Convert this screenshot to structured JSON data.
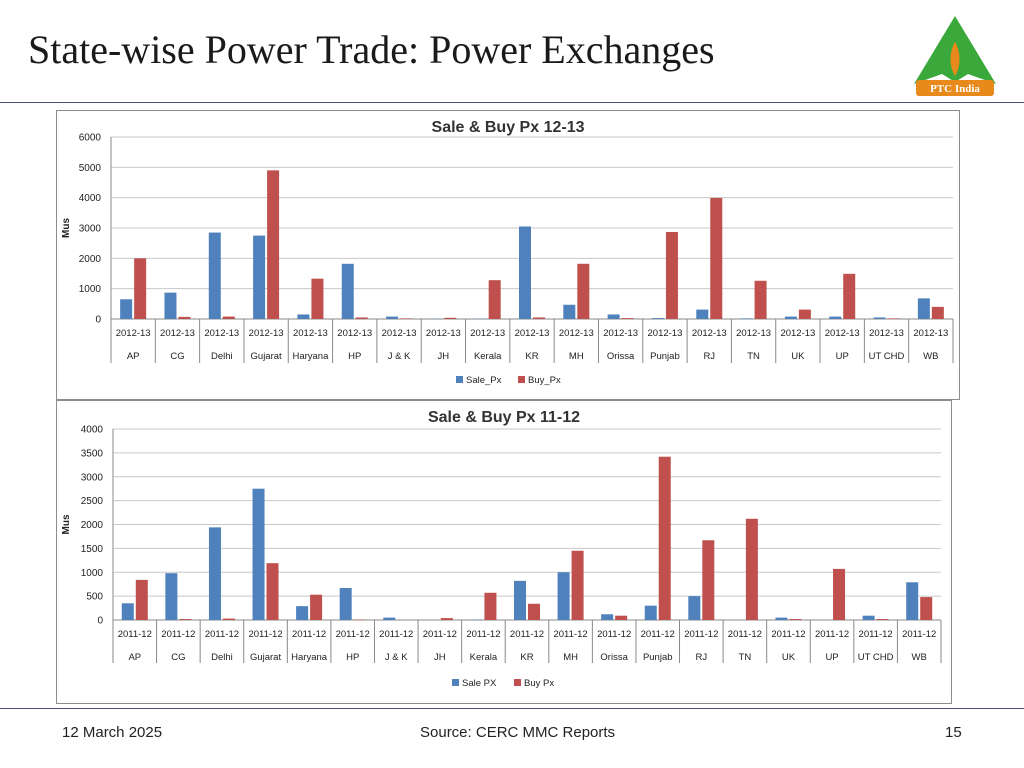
{
  "slide": {
    "title": "State-wise Power Trade: Power Exchanges",
    "logo_text": "PTC India",
    "footer_date": "12 March 2025",
    "footer_source": "Source: CERC MMC Reports",
    "page_number": "15"
  },
  "colors": {
    "series_a": "#4f81bd",
    "series_b": "#c0504d",
    "rule": "#4a4f7a",
    "logo_green": "#3aa83a",
    "logo_orange": "#e8891c"
  },
  "chart_data": [
    {
      "type": "bar",
      "title": "Sale & Buy Px 12-13",
      "ylabel": "Mus",
      "xlabel": "",
      "ylim": [
        0,
        6000
      ],
      "yticks": [
        "0",
        "1000",
        "2000",
        "3000",
        "4000",
        "5000",
        "6000"
      ],
      "period_label": "2012-13",
      "categories": [
        "AP",
        "CG",
        "Delhi",
        "Gujarat",
        "Haryana",
        "HP",
        "J & K",
        "JH",
        "Kerala",
        "KR",
        "MH",
        "Orissa",
        "Punjab",
        "RJ",
        "TN",
        "UK",
        "UP",
        "UT CHD",
        "WB"
      ],
      "series": [
        {
          "name": "Sale_Px",
          "values": [
            650,
            870,
            2850,
            2750,
            150,
            1820,
            80,
            10,
            10,
            3050,
            470,
            150,
            30,
            310,
            20,
            80,
            80,
            50,
            680
          ]
        },
        {
          "name": "Buy_Px",
          "values": [
            2000,
            70,
            80,
            4900,
            1330,
            50,
            20,
            40,
            1280,
            50,
            1820,
            30,
            2870,
            3990,
            1260,
            310,
            1490,
            20,
            400
          ]
        }
      ],
      "grid": true,
      "legend": "bottom-center"
    },
    {
      "type": "bar",
      "title": "Sale & Buy Px 11-12",
      "ylabel": "Mus",
      "xlabel": "",
      "ylim": [
        0,
        4000
      ],
      "yticks": [
        "0",
        "500",
        "1000",
        "1500",
        "2000",
        "2500",
        "3000",
        "3500",
        "4000"
      ],
      "period_label": "2011-12",
      "categories": [
        "AP",
        "CG",
        "Delhi",
        "Gujarat",
        "Haryana",
        "HP",
        "J & K",
        "JH",
        "Kerala",
        "KR",
        "MH",
        "Orissa",
        "Punjab",
        "RJ",
        "TN",
        "UK",
        "UP",
        "UT CHD",
        "WB"
      ],
      "series": [
        {
          "name": "Sale PX",
          "values": [
            350,
            980,
            1940,
            2750,
            290,
            670,
            50,
            0,
            10,
            820,
            1000,
            120,
            300,
            500,
            0,
            50,
            0,
            90,
            790
          ]
        },
        {
          "name": "Buy Px",
          "values": [
            840,
            20,
            30,
            1190,
            530,
            10,
            0,
            40,
            570,
            340,
            1450,
            90,
            3420,
            1670,
            2120,
            20,
            1070,
            20,
            480
          ]
        }
      ],
      "grid": true,
      "legend": "bottom-center"
    }
  ]
}
